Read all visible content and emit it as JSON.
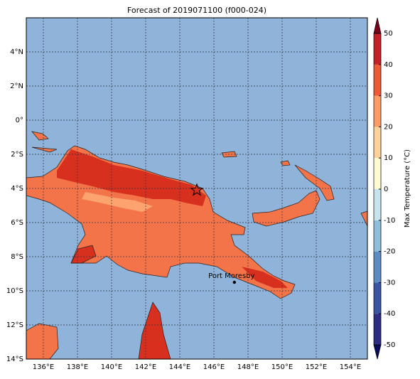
{
  "chart_data": {
    "type": "map",
    "title": "Forecast of 2019071100 (f000-024)",
    "xlim": [
      135,
      155
    ],
    "ylim": [
      -14,
      6
    ],
    "xticks": [
      {
        "value": 136,
        "label": "136°E"
      },
      {
        "value": 138,
        "label": "138°E"
      },
      {
        "value": 140,
        "label": "140°E"
      },
      {
        "value": 142,
        "label": "142°E"
      },
      {
        "value": 144,
        "label": "144°E"
      },
      {
        "value": 146,
        "label": "146°E"
      },
      {
        "value": 148,
        "label": "148°E"
      },
      {
        "value": 150,
        "label": "150°E"
      },
      {
        "value": 152,
        "label": "152°E"
      },
      {
        "value": 154,
        "label": "154°E"
      }
    ],
    "yticks": [
      {
        "value": 4,
        "label": "4°N"
      },
      {
        "value": 2,
        "label": "2°N"
      },
      {
        "value": 0,
        "label": "0°"
      },
      {
        "value": -2,
        "label": "2°S"
      },
      {
        "value": -4,
        "label": "4°S"
      },
      {
        "value": -6,
        "label": "6°S"
      },
      {
        "value": -8,
        "label": "8°S"
      },
      {
        "value": -10,
        "label": "10°S"
      },
      {
        "value": -12,
        "label": "12°S"
      },
      {
        "value": -14,
        "label": "14°S"
      }
    ],
    "grid": true,
    "places": [
      {
        "name": "Port Moresby",
        "lon": 147.2,
        "lat": -9.5
      }
    ],
    "star": {
      "lon": 145,
      "lat": -4.1
    },
    "colorbar": {
      "label": "Max Temperature (°C)",
      "lim": [
        -50,
        50
      ],
      "ticks": [
        -50,
        -40,
        -30,
        -20,
        -10,
        0,
        10,
        20,
        30,
        40,
        50
      ],
      "colors": [
        "#2c2d84",
        "#3a55a4",
        "#5b8cc4",
        "#8fbddc",
        "#c6e4ee",
        "#fffbd0",
        "#fdd29a",
        "#fb9d63",
        "#ee5a36",
        "#c51f27"
      ]
    }
  }
}
